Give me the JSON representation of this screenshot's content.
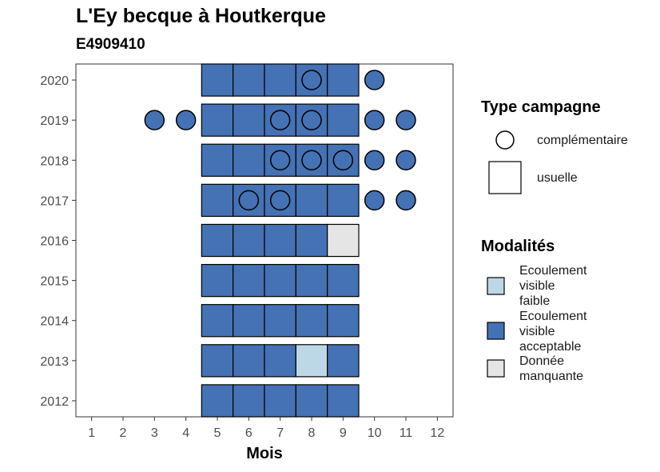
{
  "chart_data": {
    "type": "heatmap",
    "title": "L'Ey becque à Houtkerque",
    "subtitle": "E4909410",
    "xlabel": "Mois",
    "ylabel": "",
    "x_ticks": [
      1,
      2,
      3,
      4,
      5,
      6,
      7,
      8,
      9,
      10,
      11,
      12
    ],
    "y_ticks": [
      2012,
      2013,
      2014,
      2015,
      2016,
      2017,
      2018,
      2019,
      2020
    ],
    "xlim": [
      0.5,
      12.5
    ],
    "ylim": [
      2011.6,
      2020.4
    ],
    "grid": false,
    "legend_placement": "right",
    "colors": {
      "Ecoulement visible faible": "#bdd7e7",
      "Ecoulement visible acceptable": "#4472b4",
      "Donnée manquante": "#e5e5e5"
    },
    "usuelle": [
      {
        "year": 2012,
        "months": [
          5,
          6,
          7,
          8,
          9
        ],
        "modalites": [
          "Ecoulement visible acceptable",
          "Ecoulement visible acceptable",
          "Ecoulement visible acceptable",
          "Ecoulement visible acceptable",
          "Ecoulement visible acceptable"
        ]
      },
      {
        "year": 2013,
        "months": [
          5,
          6,
          7,
          8,
          9
        ],
        "modalites": [
          "Ecoulement visible acceptable",
          "Ecoulement visible acceptable",
          "Ecoulement visible acceptable",
          "Ecoulement visible faible",
          "Ecoulement visible acceptable"
        ]
      },
      {
        "year": 2014,
        "months": [
          5,
          6,
          7,
          8,
          9
        ],
        "modalites": [
          "Ecoulement visible acceptable",
          "Ecoulement visible acceptable",
          "Ecoulement visible acceptable",
          "Ecoulement visible acceptable",
          "Ecoulement visible acceptable"
        ]
      },
      {
        "year": 2015,
        "months": [
          5,
          6,
          7,
          8,
          9
        ],
        "modalites": [
          "Ecoulement visible acceptable",
          "Ecoulement visible acceptable",
          "Ecoulement visible acceptable",
          "Ecoulement visible acceptable",
          "Ecoulement visible acceptable"
        ]
      },
      {
        "year": 2016,
        "months": [
          5,
          6,
          7,
          8,
          9
        ],
        "modalites": [
          "Ecoulement visible acceptable",
          "Ecoulement visible acceptable",
          "Ecoulement visible acceptable",
          "Ecoulement visible acceptable",
          "Donnée manquante"
        ]
      },
      {
        "year": 2017,
        "months": [
          5,
          6,
          7,
          8,
          9
        ],
        "modalites": [
          "Ecoulement visible acceptable",
          "Ecoulement visible acceptable",
          "Ecoulement visible acceptable",
          "Ecoulement visible acceptable",
          "Ecoulement visible acceptable"
        ]
      },
      {
        "year": 2018,
        "months": [
          5,
          6,
          7,
          8,
          9
        ],
        "modalites": [
          "Ecoulement visible acceptable",
          "Ecoulement visible acceptable",
          "Ecoulement visible acceptable",
          "Ecoulement visible acceptable",
          "Ecoulement visible acceptable"
        ]
      },
      {
        "year": 2019,
        "months": [
          5,
          6,
          7,
          8,
          9
        ],
        "modalites": [
          "Ecoulement visible acceptable",
          "Ecoulement visible acceptable",
          "Ecoulement visible acceptable",
          "Ecoulement visible acceptable",
          "Ecoulement visible acceptable"
        ]
      },
      {
        "year": 2020,
        "months": [
          5,
          6,
          7,
          8,
          9
        ],
        "modalites": [
          "Ecoulement visible acceptable",
          "Ecoulement visible acceptable",
          "Ecoulement visible acceptable",
          "Ecoulement visible acceptable",
          "Ecoulement visible acceptable"
        ]
      }
    ],
    "complementaire": [
      {
        "year": 2017,
        "month": 6,
        "modalite": "Ecoulement visible acceptable"
      },
      {
        "year": 2017,
        "month": 7,
        "modalite": "Ecoulement visible acceptable"
      },
      {
        "year": 2017,
        "month": 10,
        "modalite": "Ecoulement visible acceptable"
      },
      {
        "year": 2017,
        "month": 11,
        "modalite": "Ecoulement visible acceptable"
      },
      {
        "year": 2018,
        "month": 7,
        "modalite": "Ecoulement visible acceptable"
      },
      {
        "year": 2018,
        "month": 8,
        "modalite": "Ecoulement visible acceptable"
      },
      {
        "year": 2018,
        "month": 9,
        "modalite": "Ecoulement visible acceptable"
      },
      {
        "year": 2018,
        "month": 10,
        "modalite": "Ecoulement visible acceptable"
      },
      {
        "year": 2018,
        "month": 11,
        "modalite": "Ecoulement visible acceptable"
      },
      {
        "year": 2019,
        "month": 3,
        "modalite": "Ecoulement visible acceptable"
      },
      {
        "year": 2019,
        "month": 4,
        "modalite": "Ecoulement visible acceptable"
      },
      {
        "year": 2019,
        "month": 7,
        "modalite": "Ecoulement visible acceptable"
      },
      {
        "year": 2019,
        "month": 8,
        "modalite": "Ecoulement visible acceptable"
      },
      {
        "year": 2019,
        "month": 10,
        "modalite": "Ecoulement visible acceptable"
      },
      {
        "year": 2019,
        "month": 11,
        "modalite": "Ecoulement visible acceptable"
      },
      {
        "year": 2020,
        "month": 8,
        "modalite": "Ecoulement visible acceptable"
      },
      {
        "year": 2020,
        "month": 10,
        "modalite": "Ecoulement visible acceptable"
      }
    ]
  },
  "legend": {
    "type_title": "Type campagne",
    "type_items": [
      {
        "label": "complémentaire",
        "shape": "circle"
      },
      {
        "label": "usuelle",
        "shape": "square"
      }
    ],
    "modalites_title": "Modalités",
    "modalites_items": [
      {
        "lines": [
          "Ecoulement",
          "visible",
          "faible"
        ],
        "color": "#bdd7e7"
      },
      {
        "lines": [
          "Ecoulement",
          "visible",
          "acceptable"
        ],
        "color": "#4472b4"
      },
      {
        "lines": [
          "Donnée",
          "manquante"
        ],
        "color": "#e5e5e5"
      }
    ]
  }
}
